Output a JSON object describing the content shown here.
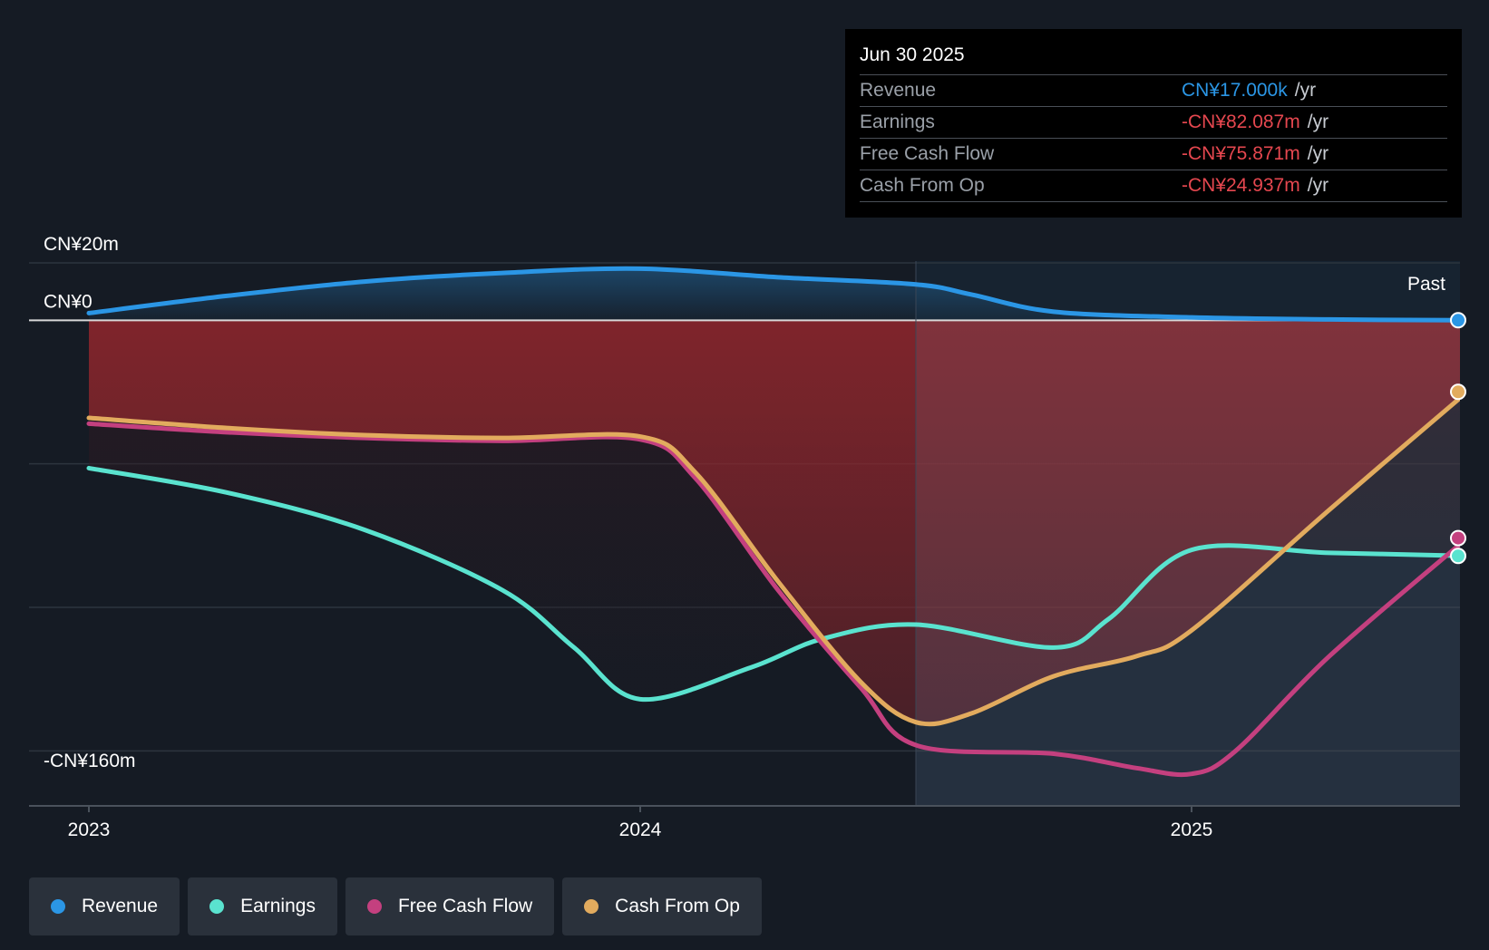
{
  "chart_data": {
    "type": "line",
    "title": "",
    "x_ticks": [
      2023,
      2024,
      2025
    ],
    "x_range": [
      2022.96,
      2025.5
    ],
    "ylim": [
      -160,
      20
    ],
    "y_tick_labels": [
      {
        "value": 20,
        "label": "CN¥20m"
      },
      {
        "value": 0,
        "label": "CN¥0"
      },
      {
        "value": -160,
        "label": "-CN¥160m"
      }
    ],
    "gridlines": [
      20,
      0,
      -50,
      -100,
      -150
    ],
    "past_start": 2024.5,
    "past_label": "Past",
    "series": [
      {
        "name": "Revenue",
        "key": "revenue",
        "color": "#2b96e5",
        "x": [
          2023.0,
          2023.25,
          2023.5,
          2023.75,
          2024.0,
          2024.25,
          2024.5,
          2024.6,
          2024.75,
          2025.0,
          2025.25,
          2025.5
        ],
        "y": [
          2.5,
          8.5,
          13.5,
          16.5,
          18.0,
          15.0,
          12.5,
          9.0,
          3.0,
          1.0,
          0.3,
          0.017
        ]
      },
      {
        "name": "Earnings",
        "key": "earnings",
        "color": "#5ae3cf",
        "x": [
          2023.0,
          2023.25,
          2023.5,
          2023.75,
          2023.88,
          2024.0,
          2024.2,
          2024.33,
          2024.5,
          2024.75,
          2024.85,
          2025.0,
          2025.25,
          2025.5
        ],
        "y": [
          -51.5,
          -60.0,
          -73.0,
          -94.0,
          -114.0,
          -132.0,
          -121.0,
          -111.0,
          -106.0,
          -114.0,
          -104.0,
          -80.0,
          -81.0,
          -82.087
        ]
      },
      {
        "name": "Free Cash Flow",
        "key": "fcf",
        "color": "#c4407f",
        "x": [
          2023.0,
          2023.25,
          2023.5,
          2023.75,
          2024.0,
          2024.1,
          2024.25,
          2024.4,
          2024.5,
          2024.75,
          2024.9,
          2025.0,
          2025.08,
          2025.25,
          2025.5
        ],
        "y": [
          -36.0,
          -39.0,
          -41.0,
          -42.0,
          -41.5,
          -55.0,
          -94.0,
          -128.0,
          -148.0,
          -151.0,
          -156.0,
          -158.0,
          -150.0,
          -117.0,
          -75.871
        ]
      },
      {
        "name": "Cash From Op",
        "key": "cfo",
        "color": "#e2ab5e",
        "x": [
          2023.0,
          2023.25,
          2023.5,
          2023.75,
          2024.0,
          2024.1,
          2024.25,
          2024.4,
          2024.5,
          2024.6,
          2024.75,
          2024.9,
          2025.0,
          2025.25,
          2025.5
        ],
        "y": [
          -34.0,
          -37.5,
          -40.0,
          -41.0,
          -40.5,
          -53.0,
          -91.0,
          -126.0,
          -140.0,
          -137.0,
          -124.0,
          -117.0,
          -108.0,
          -66.0,
          -24.937
        ]
      }
    ]
  },
  "tooltip": {
    "date": "Jun 30 2025",
    "rows": [
      {
        "label": "Revenue",
        "value": "CN¥17.000k",
        "unit": "/yr",
        "color": "#2b96e5"
      },
      {
        "label": "Earnings",
        "value": "-CN¥82.087m",
        "unit": "/yr",
        "color": "#e5474f"
      },
      {
        "label": "Free Cash Flow",
        "value": "-CN¥75.871m",
        "unit": "/yr",
        "color": "#e5474f"
      },
      {
        "label": "Cash From Op",
        "value": "-CN¥24.937m",
        "unit": "/yr",
        "color": "#e5474f"
      }
    ]
  },
  "legend": [
    {
      "label": "Revenue",
      "color": "#2b96e5"
    },
    {
      "label": "Earnings",
      "color": "#5ae3cf"
    },
    {
      "label": "Free Cash Flow",
      "color": "#c4407f"
    },
    {
      "label": "Cash From Op",
      "color": "#e2ab5e"
    }
  ]
}
